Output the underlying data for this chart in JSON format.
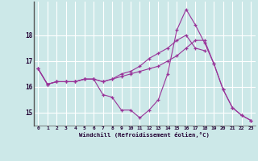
{
  "xlabel": "Windchill (Refroidissement éolien,°C)",
  "background_color": "#cce8e8",
  "grid_color": "#ffffff",
  "line_color": "#993399",
  "spine_color": "#555555",
  "xlim": [
    -0.5,
    23.5
  ],
  "ylim": [
    14.5,
    19.3
  ],
  "yticks": [
    15,
    16,
    17,
    18
  ],
  "xticks": [
    0,
    1,
    2,
    3,
    4,
    5,
    6,
    7,
    8,
    9,
    10,
    11,
    12,
    13,
    14,
    15,
    16,
    17,
    18,
    19,
    20,
    21,
    22,
    23
  ],
  "series": [
    [
      16.7,
      16.1,
      16.2,
      16.2,
      16.2,
      16.3,
      16.3,
      15.7,
      15.6,
      15.1,
      15.1,
      14.8,
      15.1,
      15.5,
      16.5,
      18.2,
      19.0,
      18.4,
      17.7,
      16.9,
      15.9,
      15.2,
      14.9,
      14.7
    ],
    [
      16.7,
      16.1,
      16.2,
      16.2,
      16.2,
      16.3,
      16.3,
      16.2,
      16.3,
      16.4,
      16.5,
      16.6,
      16.7,
      16.8,
      17.0,
      17.2,
      17.5,
      17.8,
      17.8,
      16.9,
      15.9,
      15.2,
      14.9,
      14.7
    ],
    [
      16.7,
      16.1,
      16.2,
      16.2,
      16.2,
      16.3,
      16.3,
      16.2,
      16.3,
      16.5,
      16.6,
      16.8,
      17.1,
      17.3,
      17.5,
      17.8,
      18.0,
      17.5,
      17.4,
      null,
      null,
      null,
      null,
      null
    ]
  ]
}
